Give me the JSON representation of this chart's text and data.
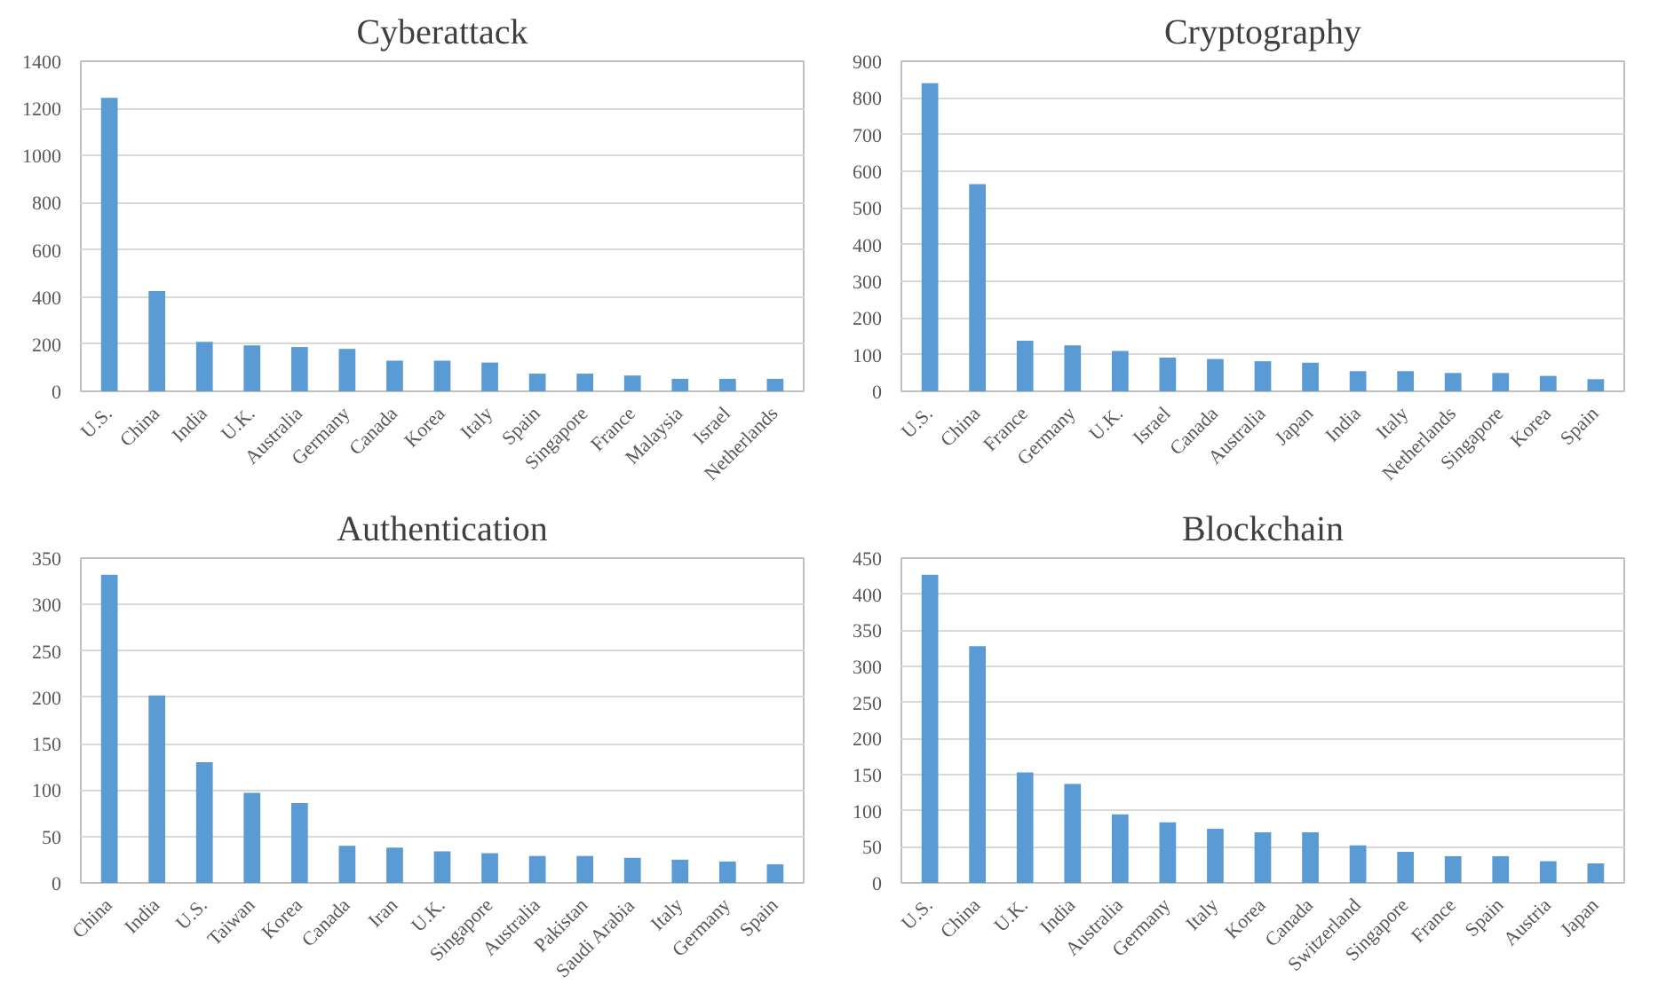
{
  "chart_data": [
    {
      "type": "bar",
      "title": "Cyberattack",
      "categories": [
        "U.S.",
        "China",
        "India",
        "U.K.",
        "Australia",
        "Germany",
        "Canada",
        "Korea",
        "Italy",
        "Spain",
        "Singapore",
        "France",
        "Malaysia",
        "Israel",
        "Netherlands"
      ],
      "values": [
        1245,
        425,
        210,
        195,
        188,
        180,
        130,
        130,
        122,
        75,
        75,
        67,
        53,
        53,
        53
      ],
      "color": "#5b9bd5",
      "ylim": [
        0,
        1400
      ],
      "yticks": [
        0,
        200,
        400,
        600,
        800,
        1000,
        1200,
        1400
      ],
      "grid": "y"
    },
    {
      "type": "bar",
      "title": "Cryptography",
      "categories": [
        "U.S.",
        "China",
        "France",
        "Germany",
        "U.K.",
        "Israel",
        "Canada",
        "Australia",
        "Japan",
        "India",
        "Italy",
        "Netherlands",
        "Singapore",
        "Korea",
        "Spain"
      ],
      "values": [
        840,
        565,
        138,
        125,
        110,
        92,
        88,
        82,
        78,
        55,
        55,
        50,
        50,
        42,
        33
      ],
      "color": "#5b9bd5",
      "ylim": [
        0,
        900
      ],
      "yticks": [
        0,
        100,
        200,
        300,
        400,
        500,
        600,
        700,
        800,
        900
      ],
      "grid": "y"
    },
    {
      "type": "bar",
      "title": "Authentication",
      "categories": [
        "China",
        "India",
        "U.S.",
        "Taiwan",
        "Korea",
        "Canada",
        "Iran",
        "U.K.",
        "Singapore",
        "Australia",
        "Pakistan",
        "Saudi Arabia",
        "Italy",
        "Germany",
        "Spain"
      ],
      "values": [
        332,
        202,
        130,
        97,
        86,
        40,
        38,
        34,
        32,
        29,
        29,
        27,
        25,
        23,
        20
      ],
      "color": "#5b9bd5",
      "ylim": [
        0,
        350
      ],
      "yticks": [
        0,
        50,
        100,
        150,
        200,
        250,
        300,
        350
      ],
      "grid": "y"
    },
    {
      "type": "bar",
      "title": "Blockchain",
      "categories": [
        "U.S.",
        "China",
        "U.K.",
        "India",
        "Australia",
        "Germany",
        "Italy",
        "Korea",
        "Canada",
        "Switzerland",
        "Singapore",
        "France",
        "Spain",
        "Austria",
        "Japan"
      ],
      "values": [
        427,
        328,
        153,
        137,
        95,
        84,
        75,
        70,
        70,
        52,
        43,
        37,
        37,
        30,
        27
      ],
      "color": "#5b9bd5",
      "ylim": [
        0,
        450
      ],
      "yticks": [
        0,
        50,
        100,
        150,
        200,
        250,
        300,
        350,
        400,
        450
      ],
      "grid": "y"
    }
  ]
}
